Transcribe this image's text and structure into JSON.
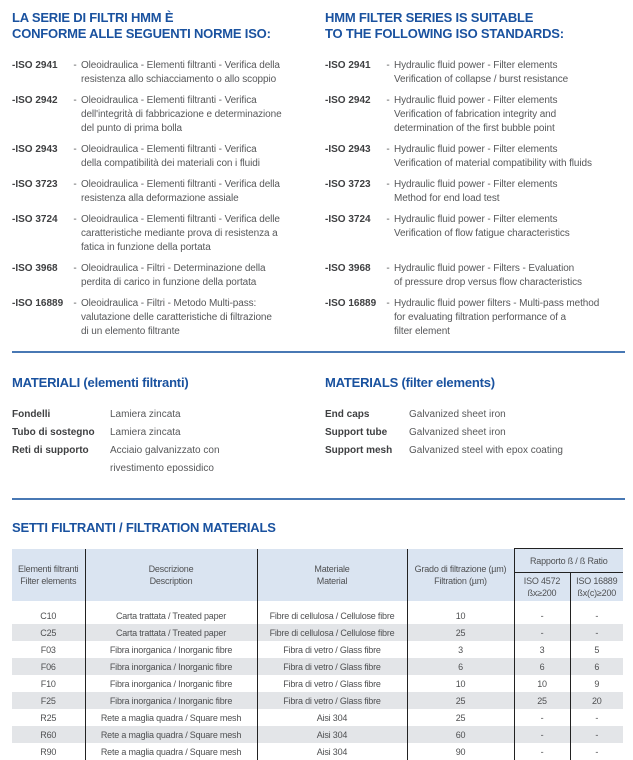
{
  "sep": "-",
  "colors": {
    "heading_blue": "#1a529f",
    "divider_blue": "#4878b4",
    "table_header_bg": "#dae4f1",
    "alt_row_bg": "#e3e5e8"
  },
  "iso_section": {
    "heading_it": "LA SERIE DI FILTRI HMM È\nCONFORME ALLE SEGUENTI NORME ISO:",
    "heading_en": "HMM FILTER SERIES IS SUITABLE\nTO THE FOLLOWING ISO STANDARDS:",
    "items": [
      {
        "label": "-ISO 2941",
        "it": "Oleoidraulica - Elementi filtranti - Verifica della\nresistenza allo schiacciamento o allo scoppio",
        "en": "Hydraulic fluid power - Filter elements\nVerification of collapse / burst resistance"
      },
      {
        "label": "-ISO 2942",
        "it": "Oleoidraulica - Elementi filtranti - Verifica\ndell'integrità di fabbricazione e determinazione\ndel punto di prima bolla",
        "en": "Hydraulic fluid power - Filter elements\nVerification of fabrication integrity and\ndetermination of the first bubble point"
      },
      {
        "label": "-ISO 2943",
        "it": "Oleoidraulica - Elementi filtranti - Verifica\ndella compatibilità dei materiali con i fluidi",
        "en": "Hydraulic fluid power - Filter elements\nVerification of material compatibility with fluids"
      },
      {
        "label": "-ISO 3723",
        "it": "Oleoidraulica - Elementi filtranti - Verifica della\nresistenza alla deformazione assiale",
        "en": "Hydraulic fluid power - Filter elements\nMethod for end load test"
      },
      {
        "label": "-ISO 3724",
        "it": "Oleoidraulica - Elementi filtranti - Verifica delle\ncaratteristiche mediante prova di resistenza a\nfatica in funzione della portata",
        "en": "Hydraulic fluid power - Filter elements\nVerification of flow fatigue characteristics"
      },
      {
        "label": "-ISO 3968",
        "it": "Oleoidraulica - Filtri - Determinazione della\nperdita di carico in funzione della portata",
        "en": "Hydraulic fluid power - Filters - Evaluation\nof pressure drop versus flow characteristics"
      },
      {
        "label": "-ISO 16889",
        "it": "Oleoidraulica - Filtri - Metodo Multi-pass:\nvalutazione delle caratteristiche di filtrazione\ndi un elemento filtrante",
        "en": "Hydraulic fluid power filters - Multi-pass method\nfor evaluating filtration performance of a\nfilter element"
      }
    ]
  },
  "materials": {
    "heading_it": "MATERIALI (elementi filtranti)",
    "heading_en": "MATERIALS (filter elements)",
    "rows_it": [
      {
        "term": "Fondelli",
        "value": "Lamiera zincata"
      },
      {
        "term": "Tubo di sostegno",
        "value": "Lamiera zincata"
      },
      {
        "term": "Reti di supporto",
        "value": "Acciaio galvanizzato con\nrivestimento epossidico"
      }
    ],
    "rows_en": [
      {
        "term": "End caps",
        "value": "Galvanized sheet iron"
      },
      {
        "term": "Support tube",
        "value": "Galvanized sheet iron"
      },
      {
        "term": "Support mesh",
        "value": "Galvanized steel with epox coating"
      }
    ]
  },
  "filtration": {
    "heading": "SETTI FILTRANTI / FILTRATION MATERIALS",
    "table": {
      "col_headers": [
        "Elementi filtranti\nFilter elements",
        "Descrizione\nDescription",
        "Materiale\nMaterial",
        "Grado di filtrazione (µm)\nFiltration (µm)"
      ],
      "group_header": "Rapporto ß / ß Ratio",
      "sub_headers": [
        "ISO 4572\nßx≥200",
        "ISO 16889\nßx(c)≥200"
      ],
      "rows": [
        [
          "C10",
          "Carta trattata / Treated paper",
          "Fibre di cellulosa / Cellulose fibre",
          "10",
          "-",
          "-"
        ],
        [
          "C25",
          "Carta trattata / Treated paper",
          "Fibre di cellulosa / Cellulose fibre",
          "25",
          "-",
          "-"
        ],
        [
          "F03",
          "Fibra inorganica / Inorganic fibre",
          "Fibra di vetro / Glass fibre",
          "3",
          "3",
          "5"
        ],
        [
          "F06",
          "Fibra inorganica / Inorganic fibre",
          "Fibra di vetro / Glass fibre",
          "6",
          "6",
          "6"
        ],
        [
          "F10",
          "Fibra inorganica / Inorganic fibre",
          "Fibra di vetro / Glass fibre",
          "10",
          "10",
          "9"
        ],
        [
          "F25",
          "Fibra inorganica / Inorganic fibre",
          "Fibra di vetro / Glass fibre",
          "25",
          "25",
          "20"
        ],
        [
          "R25",
          "Rete a maglia quadra / Square mesh",
          "Aisi 304",
          "25",
          "-",
          "-"
        ],
        [
          "R60",
          "Rete a maglia quadra / Square mesh",
          "Aisi 304",
          "60",
          "-",
          "-"
        ],
        [
          "R90",
          "Rete a maglia quadra / Square mesh",
          "Aisi 304",
          "90",
          "-",
          "-"
        ]
      ]
    }
  }
}
